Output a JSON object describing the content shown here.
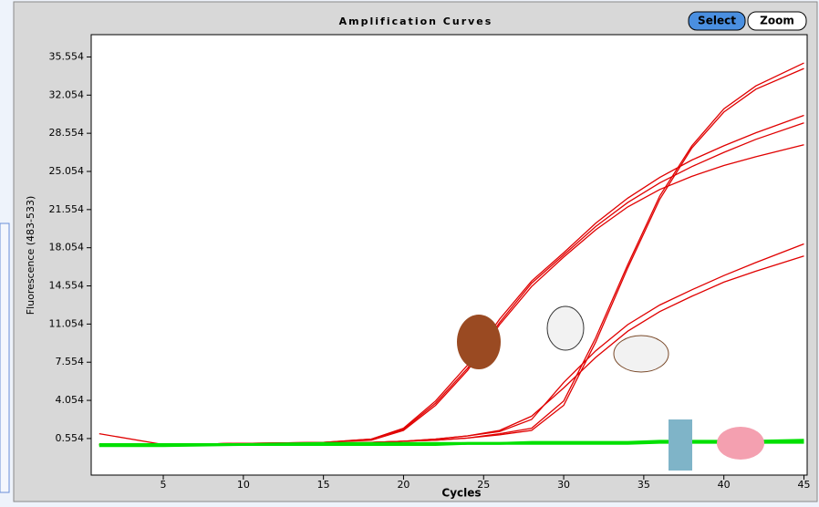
{
  "chart_data": {
    "type": "line",
    "title": "Amplification Curves",
    "x_label": "Cycles",
    "y_label": "Fluorescence (483-533)",
    "x": [
      1,
      5,
      10,
      15,
      18,
      20,
      22,
      24,
      26,
      28,
      30,
      32,
      34,
      36,
      38,
      40,
      42,
      45
    ],
    "xlim": [
      0.5,
      45.2
    ],
    "ylim": [
      -2.8,
      37.6
    ],
    "xticks": [
      5,
      10,
      15,
      20,
      25,
      30,
      35,
      40,
      45
    ],
    "yticks": [
      0.554,
      4.054,
      7.554,
      11.054,
      14.554,
      18.054,
      21.554,
      25.054,
      28.554,
      32.054,
      35.554
    ],
    "series": [
      {
        "color": "#e00000",
        "values": [
          1.0,
          0.0,
          0.1,
          0.2,
          0.5,
          1.5,
          4.0,
          7.3,
          11.5,
          15.0,
          17.6,
          20.3,
          22.6,
          24.5,
          26.1,
          27.4,
          28.6,
          30.2
        ]
      },
      {
        "color": "#e00000",
        "values": [
          0.0,
          0.0,
          0.1,
          0.2,
          0.5,
          1.4,
          3.8,
          7.0,
          11.2,
          14.8,
          17.4,
          20.0,
          22.2,
          24.0,
          25.5,
          26.8,
          28.0,
          29.5
        ]
      },
      {
        "color": "#e00000",
        "values": [
          0.0,
          0.0,
          0.1,
          0.2,
          0.4,
          1.3,
          3.6,
          6.8,
          11.0,
          14.5,
          17.2,
          19.7,
          21.8,
          23.4,
          24.6,
          25.6,
          26.4,
          27.5
        ]
      },
      {
        "color": "#e00000",
        "values": [
          0.0,
          0.0,
          0.1,
          0.1,
          0.2,
          0.3,
          0.4,
          0.6,
          1.0,
          1.5,
          4.0,
          9.8,
          16.5,
          22.8,
          27.4,
          30.8,
          32.9,
          35.0
        ]
      },
      {
        "color": "#e00000",
        "values": [
          0.0,
          0.0,
          0.1,
          0.1,
          0.2,
          0.3,
          0.4,
          0.6,
          0.9,
          1.3,
          3.6,
          9.4,
          16.2,
          22.5,
          27.2,
          30.5,
          32.6,
          34.5
        ]
      },
      {
        "color": "#e00000",
        "values": [
          0.0,
          0.0,
          0.1,
          0.1,
          0.2,
          0.3,
          0.5,
          0.8,
          1.2,
          2.3,
          5.7,
          8.6,
          11.0,
          12.8,
          14.2,
          15.5,
          16.7,
          18.4
        ]
      },
      {
        "color": "#e00000",
        "values": [
          0.0,
          0.0,
          0.1,
          0.1,
          0.2,
          0.3,
          0.5,
          0.8,
          1.3,
          2.6,
          5.2,
          8.0,
          10.4,
          12.2,
          13.6,
          14.9,
          15.9,
          17.3
        ]
      },
      {
        "color": "#00e000",
        "values": [
          0.0,
          0.0,
          0.0,
          0.1,
          0.1,
          0.1,
          0.1,
          0.1,
          0.1,
          0.2,
          0.2,
          0.2,
          0.2,
          0.3,
          0.3,
          0.3,
          0.3,
          0.4
        ]
      },
      {
        "color": "#00e000",
        "values": [
          -0.1,
          -0.1,
          0.0,
          0.0,
          0.0,
          0.0,
          0.0,
          0.1,
          0.1,
          0.1,
          0.1,
          0.1,
          0.1,
          0.2,
          0.2,
          0.2,
          0.2,
          0.2
        ]
      }
    ]
  },
  "controls": [
    "Select",
    "Zoom"
  ]
}
